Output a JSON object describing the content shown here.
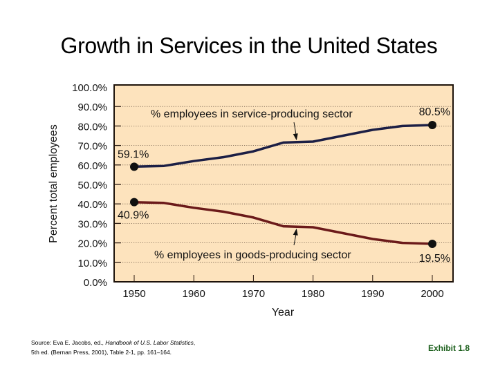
{
  "title": "Growth in Services in the United States",
  "chart_data": {
    "type": "line",
    "title": "Growth in Services in the United States",
    "xlabel": "Year",
    "ylabel": "Percent total employees",
    "x": [
      1950,
      1955,
      1960,
      1965,
      1970,
      1975,
      1980,
      1985,
      1990,
      1995,
      2000
    ],
    "xticks": [
      "1950",
      "1960",
      "1970",
      "1980",
      "1990",
      "2000"
    ],
    "xtick_values": [
      1950,
      1960,
      1970,
      1980,
      1990,
      2000
    ],
    "yticks": [
      "0.0%",
      "10.0%",
      "20.0%",
      "30.0%",
      "40.0%",
      "50.0%",
      "60.0%",
      "70.0%",
      "80.0%",
      "90.0%",
      "100.0%"
    ],
    "ylim": [
      0,
      100
    ],
    "xlim": [
      1946.6,
      2003.6
    ],
    "grid": "horizontal-dotted",
    "series": [
      {
        "name": "% employees in service-producing sector",
        "color": "#1c1f45",
        "values": [
          59.1,
          59.5,
          62,
          64,
          67,
          71.5,
          72,
          75,
          78,
          80,
          80.5
        ],
        "start_label": "59.1%",
        "end_label": "80.5%"
      },
      {
        "name": "% employees in goods-producing sector",
        "color": "#6b1a1a",
        "values": [
          40.9,
          40.5,
          38,
          36,
          33,
          28.5,
          28,
          25,
          22,
          20,
          19.5
        ],
        "start_label": "40.9%",
        "end_label": "19.5%"
      }
    ],
    "annotations": [
      {
        "text": "% employees in service-producing sector",
        "arrow_to_year": 1977,
        "series": 0
      },
      {
        "text": "% employees in goods-producing sector",
        "arrow_to_year": 1977,
        "series": 1
      }
    ],
    "background": "#fde3bd"
  },
  "footer": {
    "source_prefix": "Source: Eva E. Jacobs, ed., ",
    "source_title": "Handbook of U.S. Labor Statistics",
    "source_suffix": ",",
    "source_line2": "5th ed. (Bernan Press, 2001), Table 2-1, pp. 161–164.",
    "exhibit": "Exhibit 1.8"
  }
}
